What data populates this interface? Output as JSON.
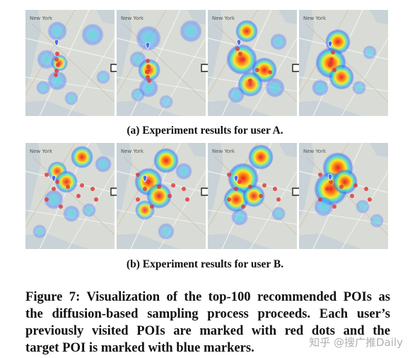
{
  "figure": {
    "caption_a": "(a) Experiment results for user A.",
    "caption_b": "(b) Experiment results for user B.",
    "caption_lines": [
      "Figure 7: Visualization of the top-100 recommended POIs as",
      "the diffusion-based sampling process proceeds. Each user’s",
      "previously visited POIs are marked with red dots and the",
      "target POI is marked with blue markers."
    ],
    "map_label": "New York",
    "watermark": "知乎 @搜广推Daily"
  },
  "colors": {
    "map_bg": "#d9dcd6",
    "water": "#c9d2d6",
    "heat_red": "#e8211c",
    "heat_yellow": "#ffe81a",
    "heat_cyan": "#35e0d0",
    "heat_blue": "#2f5cff",
    "visited_dot": "#e03b3b",
    "target_marker": "#4a6cf0"
  },
  "icons": {
    "step_arrow": "right-arrow-icon",
    "target": "map-pin-icon"
  }
}
